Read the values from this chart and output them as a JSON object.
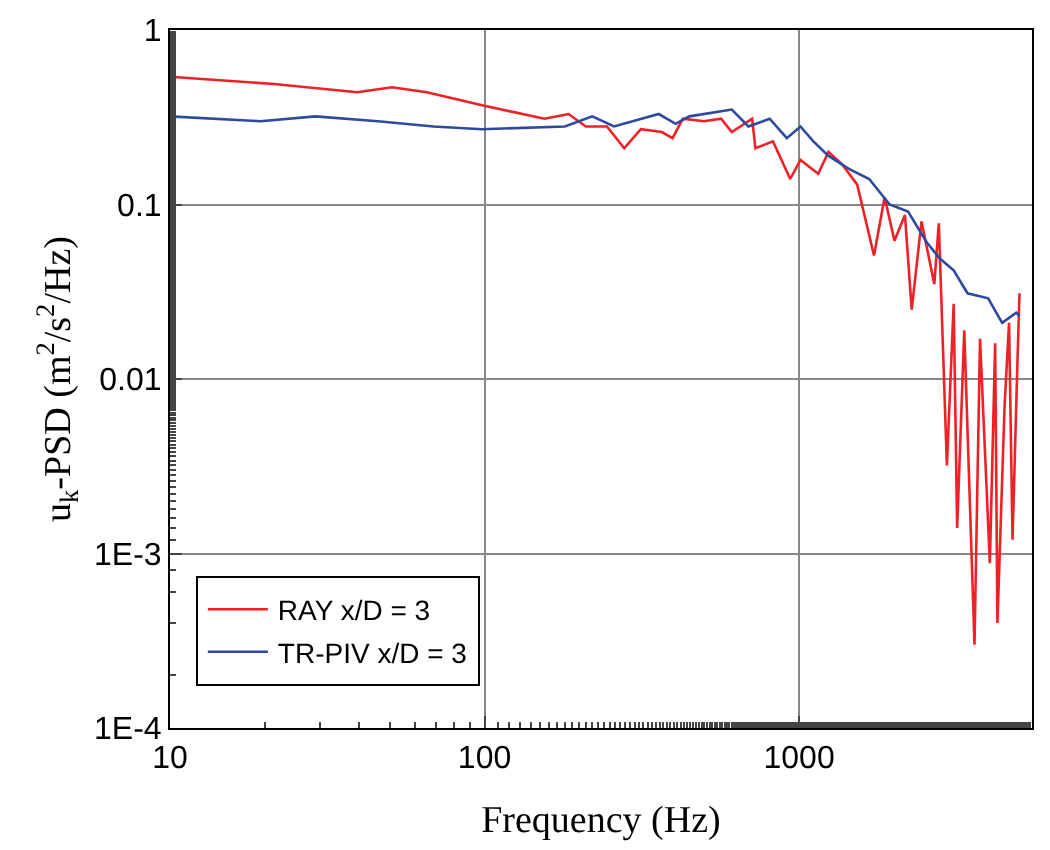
{
  "chart_data": {
    "type": "line",
    "xlabel": "Frequency (Hz)",
    "ylabel": "u$_{k}$-PSD (m$^{2}$/s$^{2}$/Hz)",
    "log": "xy",
    "grid": true,
    "legend": "bottom left",
    "marker": "none",
    "line_style": "solid",
    "xlim": [
      10,
      5500
    ],
    "xticks": [
      10,
      100,
      1000
    ],
    "ylim": [
      0.0001,
      1
    ],
    "yticks": [
      1,
      0.1,
      0.01,
      {
        "value": 0.001,
        "label": "1E-3"
      },
      {
        "value": 0.0001,
        "label": "1E-4"
      }
    ],
    "series": [
      {
        "name": "RAY x/D = 3",
        "color": "#ee2127",
        "x": [
          10,
          21.4,
          39.4,
          50.8,
          65.5,
          98.3,
          155,
          185,
          210,
          245,
          278,
          314,
          366,
          396,
          427,
          498,
          565,
          611,
          709,
          726,
          826,
          937,
          1010,
          1150,
          1240,
          1370,
          1530,
          1730,
          1870,
          2010,
          2170,
          2280,
          2450,
          2690,
          2780,
          2950,
          3100,
          3180,
          3350,
          3610,
          3760,
          4040,
          4200,
          4270,
          4500,
          4650,
          4770,
          4940,
          5020
        ],
        "values": [
          0.54,
          0.49,
          0.44,
          0.47,
          0.44,
          0.37,
          0.31,
          0.33,
          0.28,
          0.28,
          0.21,
          0.27,
          0.26,
          0.24,
          0.31,
          0.3,
          0.31,
          0.26,
          0.31,
          0.21,
          0.23,
          0.14,
          0.18,
          0.15,
          0.2,
          0.17,
          0.13,
          0.051,
          0.11,
          0.062,
          0.087,
          0.025,
          0.08,
          0.035,
          0.078,
          0.0032,
          0.027,
          0.0014,
          0.019,
          0.0003,
          0.017,
          0.00088,
          0.016,
          0.0004,
          0.007,
          0.021,
          0.0012,
          0.012,
          0.031
        ]
      },
      {
        "name": "TR-PIV x/D = 3",
        "color": "#2e4a9e",
        "x": [
          10,
          19.4,
          29,
          45.8,
          68.9,
          98,
          180,
          220,
          258,
          358,
          405,
          448,
          611,
          690,
          806,
          914,
          1010,
          1110,
          1240,
          1440,
          1670,
          1940,
          2220,
          2540,
          2800,
          3100,
          3430,
          3990,
          4420,
          4900,
          5020
        ],
        "values": [
          0.32,
          0.3,
          0.32,
          0.3,
          0.28,
          0.27,
          0.28,
          0.32,
          0.28,
          0.33,
          0.29,
          0.32,
          0.35,
          0.28,
          0.31,
          0.24,
          0.28,
          0.23,
          0.19,
          0.16,
          0.14,
          0.1,
          0.091,
          0.061,
          0.049,
          0.042,
          0.031,
          0.029,
          0.021,
          0.024,
          0.023
        ]
      }
    ]
  }
}
